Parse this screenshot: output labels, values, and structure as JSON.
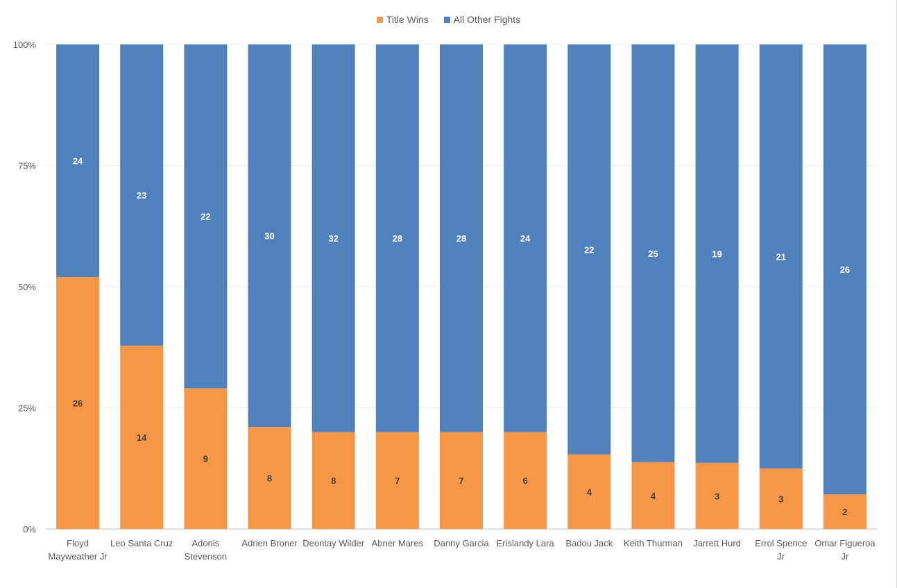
{
  "chart_data": {
    "type": "bar",
    "stacked": "percent",
    "categories": [
      "Floyd Mayweather Jr",
      "Leo Santa Cruz",
      "Adonis Stevenson",
      "Adrien Broner",
      "Deontay Wilder",
      "Abner Mares",
      "Danny Garcia",
      "Erislandy Lara",
      "Badou Jack",
      "Keith Thurman",
      "Jarrett Hurd",
      "Errol Spence Jr",
      "Omar Figueroa Jr"
    ],
    "series": [
      {
        "name": "Title Wins",
        "color": "#f79646",
        "values": [
          26,
          14,
          9,
          8,
          8,
          7,
          7,
          6,
          4,
          4,
          3,
          3,
          2
        ]
      },
      {
        "name": "All Other Fights",
        "color": "#4f81bd",
        "values": [
          24,
          23,
          22,
          30,
          32,
          28,
          28,
          24,
          22,
          25,
          19,
          21,
          26
        ]
      }
    ],
    "y_ticks": [
      "0%",
      "25%",
      "50%",
      "75%",
      "100%"
    ],
    "ylim": [
      0,
      100
    ],
    "grid": true,
    "legend": "top-center",
    "title": "",
    "xlabel": "",
    "ylabel": ""
  }
}
